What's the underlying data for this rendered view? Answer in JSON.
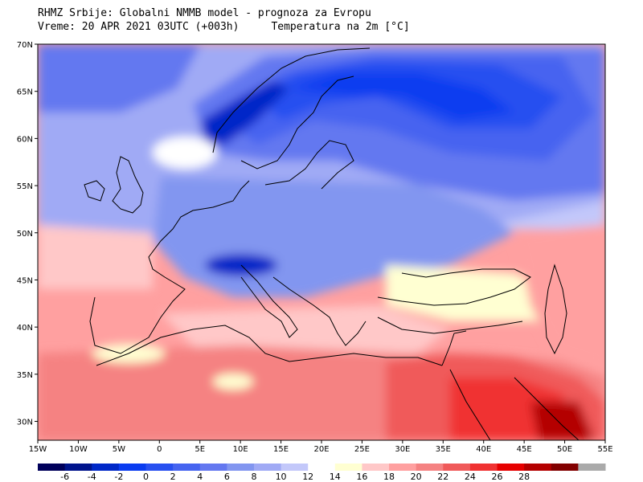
{
  "header": {
    "title": "RHMZ Srbije: Globalni NMMB model - prognoza za Evropu",
    "valid_time": "Vreme: 20 APR 2021 03UTC (+003h)",
    "field": "Temperatura na 2m [°C]"
  },
  "map": {
    "lon_range": [
      -15,
      55
    ],
    "lat_range": [
      28,
      70
    ],
    "lon_ticks": [
      "15W",
      "10W",
      "5W",
      "0",
      "5E",
      "10E",
      "15E",
      "20E",
      "25E",
      "30E",
      "35E",
      "40E",
      "45E",
      "50E",
      "55E"
    ],
    "lat_ticks": [
      "70N",
      "65N",
      "60N",
      "55N",
      "50N",
      "45N",
      "40N",
      "35N",
      "30N"
    ],
    "colors": {
      "frame": "#000000",
      "coast": "#000000"
    }
  },
  "colorbar": {
    "labels": [
      "-6",
      "-4",
      "-2",
      "0",
      "2",
      "4",
      "6",
      "8",
      "10",
      "12",
      "14",
      "16",
      "18",
      "20",
      "22",
      "24",
      "26",
      "28"
    ],
    "colors": [
      "#00005a",
      "#00148c",
      "#0028c8",
      "#0a3cf0",
      "#2850f0",
      "#4664f0",
      "#6478f0",
      "#8296f0",
      "#a0aaf5",
      "#c3c8fa",
      "#ffffff",
      "#ffffd2",
      "#ffc8c8",
      "#ffa0a0",
      "#f58282",
      "#f05a5a",
      "#f03232",
      "#e60000",
      "#b40000",
      "#820000",
      "#aaaaaa"
    ]
  }
}
